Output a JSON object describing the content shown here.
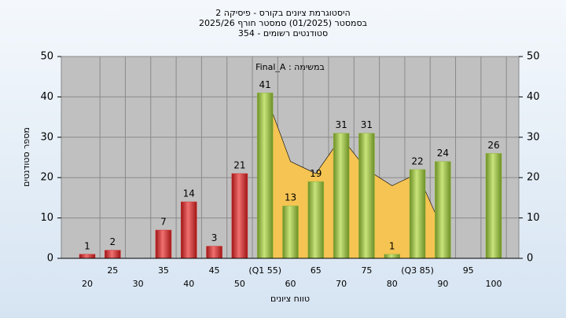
{
  "chart_data": {
    "type": "bar",
    "title": "היסטוגרמת ציונים בקורס - פיסיקה 2",
    "subtitle": "בסמסטר  (01/2025)  סמסטר חורף 2025/26",
    "subtitle2": "סטודנטים רשומים - 354",
    "annotation": "במשימה : Final_A",
    "x_label": "טווח ציונים",
    "y_label": "מספר סטודנטים",
    "categories": [
      "20",
      "25",
      "30",
      "35",
      "40",
      "45",
      "50",
      "(Q1 55)",
      "60",
      "65",
      "70",
      "75",
      "80",
      "(Q3 85)",
      "90",
      "95",
      "100"
    ],
    "values": [
      1,
      2,
      null,
      7,
      14,
      3,
      21,
      41,
      13,
      19,
      31,
      31,
      1,
      22,
      24,
      null,
      26
    ],
    "colors": [
      "#d42a2a",
      "#d42a2a",
      "#d42a2a",
      "#d42a2a",
      "#d42a2a",
      "#d42a2a",
      "#d42a2a",
      "#8fb83a",
      "#8fb83a",
      "#8fb83a",
      "#8fb83a",
      "#8fb83a",
      "#8fb83a",
      "#8fb83a",
      "#8fb83a",
      "#8fb83a",
      "#8fb83a"
    ],
    "overlay": {
      "color": "#f5c452",
      "values": [
        null,
        null,
        null,
        null,
        null,
        null,
        null,
        41,
        24,
        21,
        30,
        22,
        18,
        21,
        7,
        null,
        null
      ]
    },
    "ylim": [
      0,
      50
    ],
    "yticks": [
      0,
      10,
      20,
      30,
      40,
      50
    ],
    "y2lim": [
      0,
      50
    ],
    "y2ticks": [
      0,
      10,
      20,
      30,
      40,
      50
    ],
    "grid": true
  }
}
